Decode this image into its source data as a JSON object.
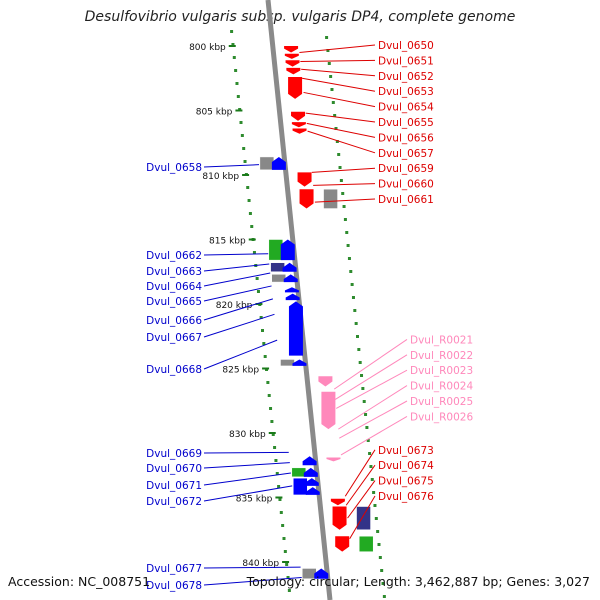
{
  "title": "Desulfovibrio vulgaris subsp. vulgaris DP4, complete genome",
  "footer": {
    "accession": "Accession: NC_008751",
    "summary": "Topology: circular; Length: 3,462,887 bp; Genes: 3,027"
  },
  "colors": {
    "backbone": "#8a8a8a",
    "dots": "#2e8b2e",
    "forward_label": "#dd0000",
    "reverse_label": "#0000cc",
    "rna_label": "#ff88bb",
    "red": "#ff0000",
    "blue": "#0000ff",
    "pink": "#ff88bb",
    "gray": "#888888",
    "green": "#22aa22",
    "navy": "#333388"
  },
  "scale": [
    {
      "label": "800 kbp",
      "kbp": 800
    },
    {
      "label": "805 kbp",
      "kbp": 805
    },
    {
      "label": "810 kbp",
      "kbp": 810
    },
    {
      "label": "815 kbp",
      "kbp": 815
    },
    {
      "label": "820 kbp",
      "kbp": 820
    },
    {
      "label": "825 kbp",
      "kbp": 825
    },
    {
      "label": "830 kbp",
      "kbp": 830
    },
    {
      "label": "835 kbp",
      "kbp": 835
    },
    {
      "label": "840 kbp",
      "kbp": 840
    }
  ],
  "labels_right": [
    {
      "text": "Dvul_0650",
      "kind": "forward",
      "kbp": 800.5
    },
    {
      "text": "Dvul_0651",
      "kind": "forward",
      "kbp": 801.2
    },
    {
      "text": "Dvul_0652",
      "kind": "forward",
      "kbp": 801.8
    },
    {
      "text": "Dvul_0653",
      "kind": "forward",
      "kbp": 802.5
    },
    {
      "text": "Dvul_0654",
      "kind": "forward",
      "kbp": 803.6
    },
    {
      "text": "Dvul_0655",
      "kind": "forward",
      "kbp": 805.2
    },
    {
      "text": "Dvul_0656",
      "kind": "forward",
      "kbp": 806.0
    },
    {
      "text": "Dvul_0657",
      "kind": "forward",
      "kbp": 806.6
    },
    {
      "text": "Dvul_0659",
      "kind": "forward",
      "kbp": 809.8
    },
    {
      "text": "Dvul_0660",
      "kind": "forward",
      "kbp": 810.8
    },
    {
      "text": "Dvul_0661",
      "kind": "forward",
      "kbp": 812.1
    },
    {
      "text": "Dvul_R0021",
      "kind": "rna",
      "kbp": 826.6
    },
    {
      "text": "Dvul_R0022",
      "kind": "rna",
      "kbp": 827.4
    },
    {
      "text": "Dvul_R0023",
      "kind": "rna",
      "kbp": 828.1
    },
    {
      "text": "Dvul_R0024",
      "kind": "rna",
      "kbp": 829.7
    },
    {
      "text": "Dvul_R0025",
      "kind": "rna",
      "kbp": 830.4
    },
    {
      "text": "Dvul_R0026",
      "kind": "rna",
      "kbp": 831.7
    },
    {
      "text": "Dvul_0673",
      "kind": "forward",
      "kbp": 834.9
    },
    {
      "text": "Dvul_0674",
      "kind": "forward",
      "kbp": 835.6
    },
    {
      "text": "Dvul_0675",
      "kind": "forward",
      "kbp": 836.6
    },
    {
      "text": "Dvul_0676",
      "kind": "forward",
      "kbp": 838.2
    }
  ],
  "labels_left": [
    {
      "text": "Dvul_0658",
      "kind": "reverse",
      "kbp": 809.2
    },
    {
      "text": "Dvul_0662",
      "kind": "reverse",
      "kbp": 816.1
    },
    {
      "text": "Dvul_0663",
      "kind": "reverse",
      "kbp": 816.9
    },
    {
      "text": "Dvul_0664",
      "kind": "reverse",
      "kbp": 817.6
    },
    {
      "text": "Dvul_0665",
      "kind": "reverse",
      "kbp": 818.6
    },
    {
      "text": "Dvul_0666",
      "kind": "reverse",
      "kbp": 819.6
    },
    {
      "text": "Dvul_0667",
      "kind": "reverse",
      "kbp": 820.8
    },
    {
      "text": "Dvul_0668",
      "kind": "reverse",
      "kbp": 822.8
    },
    {
      "text": "Dvul_0669",
      "kind": "reverse",
      "kbp": 831.5
    },
    {
      "text": "Dvul_0670",
      "kind": "reverse",
      "kbp": 832.3
    },
    {
      "text": "Dvul_0671",
      "kind": "reverse",
      "kbp": 833.1
    },
    {
      "text": "Dvul_0672",
      "kind": "reverse",
      "kbp": 834.1
    },
    {
      "text": "Dvul_0677",
      "kind": "reverse",
      "kbp": 840.4
    },
    {
      "text": "Dvul_0678",
      "kind": "reverse",
      "kbp": 841.2
    }
  ],
  "genes": [
    {
      "id": "Dvul_0650",
      "start": 800.0,
      "end": 800.5,
      "strand": "+",
      "color": "red"
    },
    {
      "id": "Dvul_0651",
      "start": 800.6,
      "end": 801.0,
      "strand": "+",
      "color": "red"
    },
    {
      "id": "Dvul_0652",
      "start": 801.1,
      "end": 801.6,
      "strand": "+",
      "color": "red"
    },
    {
      "id": "Dvul_0653",
      "start": 801.7,
      "end": 802.2,
      "strand": "+",
      "color": "red"
    },
    {
      "id": "Dvul_0654",
      "start": 802.4,
      "end": 804.1,
      "strand": "+",
      "color": "red"
    },
    {
      "id": "Dvul_0655",
      "start": 805.1,
      "end": 805.8,
      "strand": "+",
      "color": "red"
    },
    {
      "id": "Dvul_0656",
      "start": 805.9,
      "end": 806.3,
      "strand": "+",
      "color": "red"
    },
    {
      "id": "Dvul_0657",
      "start": 806.4,
      "end": 806.8,
      "strand": "+",
      "color": "red"
    },
    {
      "id": "Dvul_0658",
      "start": 808.6,
      "end": 809.6,
      "strand": "-",
      "color": "blue"
    },
    {
      "id": "Dvul_0659",
      "start": 809.8,
      "end": 810.9,
      "strand": "+",
      "color": "red"
    },
    {
      "id": "Dvul_0660",
      "start": 811.1,
      "end": 812.6,
      "strand": "+",
      "color": "red"
    },
    {
      "id": "Dvul_0662",
      "start": 815.0,
      "end": 816.6,
      "strand": "-",
      "color": "blue"
    },
    {
      "id": "Dvul_0663",
      "start": 816.8,
      "end": 817.5,
      "strand": "-",
      "color": "blue"
    },
    {
      "id": "Dvul_0664",
      "start": 817.7,
      "end": 818.3,
      "strand": "-",
      "color": "blue"
    },
    {
      "id": "Dvul_0665",
      "start": 818.7,
      "end": 819.1,
      "strand": "-",
      "color": "blue"
    },
    {
      "id": "Dvul_0666",
      "start": 819.2,
      "end": 819.7,
      "strand": "-",
      "color": "blue"
    },
    {
      "id": "Dvul_0667",
      "start": 819.8,
      "end": 824.0,
      "strand": "-",
      "color": "blue"
    },
    {
      "id": "Dvul_0668",
      "start": 824.3,
      "end": 824.8,
      "strand": "-",
      "color": "blue"
    },
    {
      "id": "Dvul_R0021",
      "start": 825.6,
      "end": 826.4,
      "strand": "+",
      "color": "pink"
    },
    {
      "id": "Dvul_R0024",
      "start": 826.8,
      "end": 829.7,
      "strand": "+",
      "color": "pink"
    },
    {
      "id": "Dvul_R0026",
      "start": 831.9,
      "end": 832.2,
      "strand": "+",
      "color": "pink"
    },
    {
      "id": "Dvul_0669",
      "start": 831.8,
      "end": 832.5,
      "strand": "-",
      "color": "blue"
    },
    {
      "id": "Dvul_0670",
      "start": 832.7,
      "end": 833.4,
      "strand": "-",
      "color": "blue"
    },
    {
      "id": "Dvul_0671",
      "start": 833.5,
      "end": 834.1,
      "strand": "-",
      "color": "blue"
    },
    {
      "id": "Dvul_0672",
      "start": 834.2,
      "end": 834.8,
      "strand": "-",
      "color": "blue"
    },
    {
      "id": "Dvul_0673",
      "start": 835.1,
      "end": 835.6,
      "strand": "+",
      "color": "red"
    },
    {
      "id": "Dvul_0674",
      "start": 835.7,
      "end": 837.5,
      "strand": "+",
      "color": "red"
    },
    {
      "id": "Dvul_0675",
      "start": 838.0,
      "end": 839.2,
      "strand": "+",
      "color": "red"
    },
    {
      "id": "Dvul_0677",
      "start": 840.5,
      "end": 841.3,
      "strand": "-",
      "color": "blue"
    }
  ],
  "features": [
    {
      "track": "left",
      "start": 808.6,
      "end": 809.6,
      "color": "gray"
    },
    {
      "track": "right",
      "start": 811.1,
      "end": 812.6,
      "color": "gray"
    },
    {
      "track": "left",
      "start": 815.0,
      "end": 816.6,
      "color": "green"
    },
    {
      "track": "left",
      "start": 816.8,
      "end": 817.5,
      "color": "navy"
    },
    {
      "track": "left",
      "start": 817.7,
      "end": 818.3,
      "color": "gray"
    },
    {
      "track": "left",
      "start": 824.3,
      "end": 824.8,
      "color": "gray"
    },
    {
      "track": "left",
      "start": 832.7,
      "end": 833.4,
      "color": "green"
    },
    {
      "track": "left",
      "start": 833.5,
      "end": 834.8,
      "color": "blue"
    },
    {
      "track": "right",
      "start": 835.7,
      "end": 837.5,
      "color": "navy"
    },
    {
      "track": "right",
      "start": 838.0,
      "end": 839.2,
      "color": "green"
    },
    {
      "track": "left",
      "start": 840.5,
      "end": 841.3,
      "color": "gray"
    }
  ]
}
